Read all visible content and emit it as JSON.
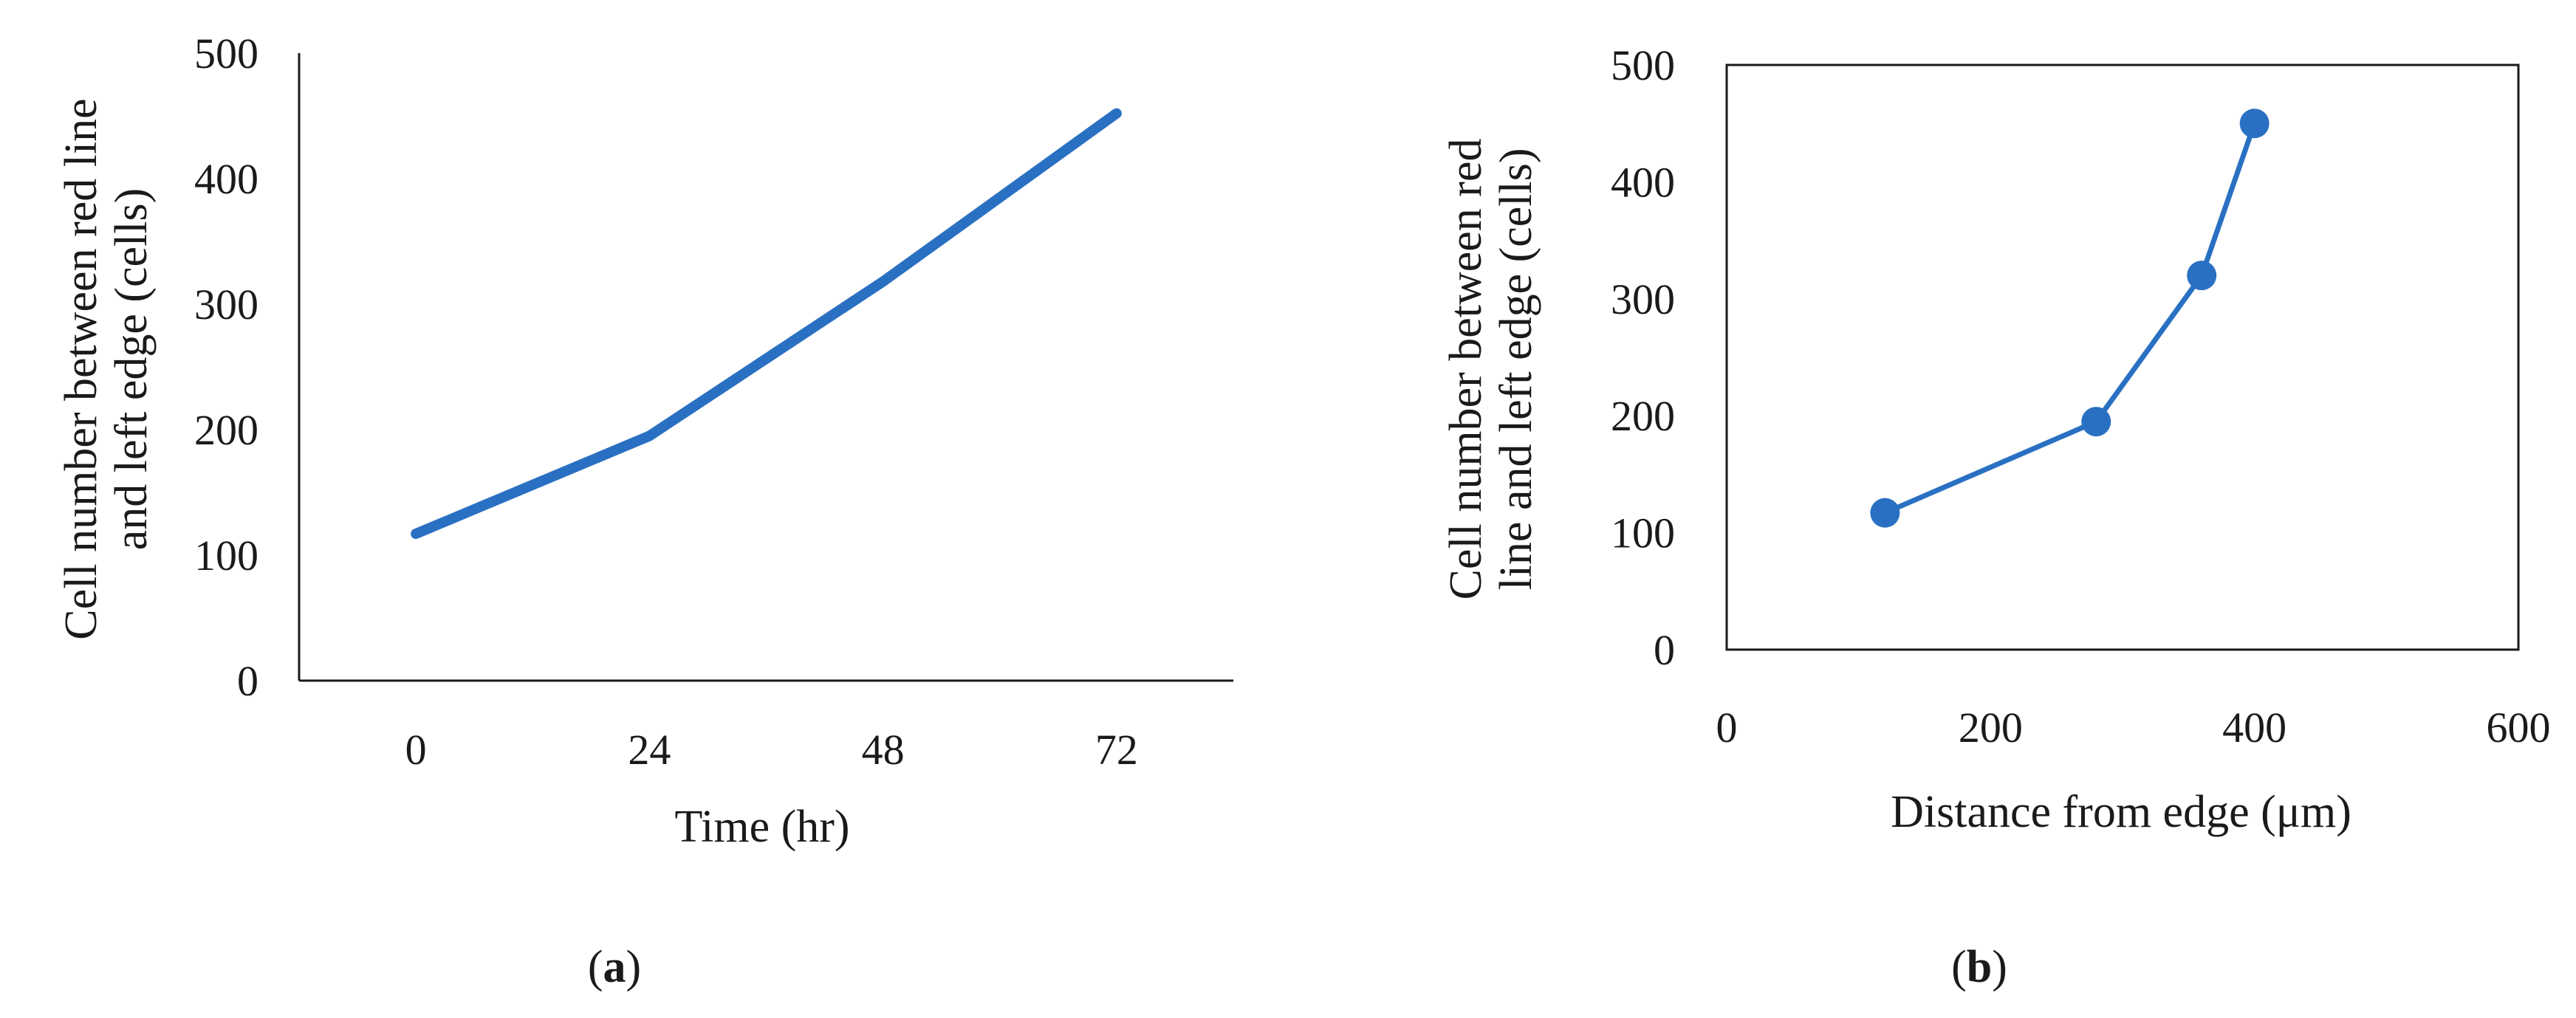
{
  "chart_data": [
    {
      "panel": "a",
      "type": "line",
      "title": "",
      "x": [
        "0",
        "24",
        "48",
        "72"
      ],
      "series": [
        {
          "values": [
            117,
            195,
            318,
            452
          ],
          "color": "#2a70c2"
        }
      ],
      "xlabel": "Time (hr)",
      "ylabel": [
        "Cell number between red line",
        "and left edge  (cells)"
      ],
      "ylim": [
        0,
        500
      ],
      "yticks": [
        "0",
        "100",
        "200",
        "300",
        "400",
        "500"
      ],
      "markers": false,
      "grid": false
    },
    {
      "panel": "b",
      "type": "scatter",
      "title": "",
      "series": [
        {
          "x": [
            120,
            280,
            360,
            400
          ],
          "y": [
            117,
            195,
            320,
            450
          ],
          "color": "#2a70c2"
        }
      ],
      "xlabel": "Distance from edge (μm)",
      "ylabel": [
        "Cell number between red",
        "line and left edge  (cells)"
      ],
      "xlim": [
        0,
        600
      ],
      "xticks": [
        "0",
        "200",
        "400",
        "600"
      ],
      "ylim": [
        0,
        500
      ],
      "yticks": [
        "0",
        "100",
        "200",
        "300",
        "400",
        "500"
      ],
      "markers": true,
      "connected": true,
      "grid": false
    }
  ],
  "labels": {
    "a": {
      "open": "(",
      "letter": "a",
      "close": ")"
    },
    "b": {
      "open": "(",
      "letter": "b",
      "close": ")"
    }
  }
}
